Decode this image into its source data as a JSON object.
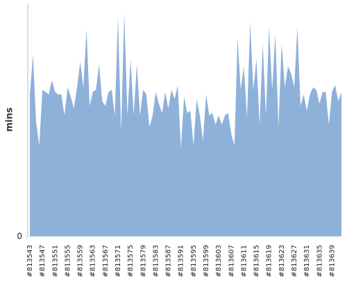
{
  "chart_data": {
    "type": "area",
    "y_label": "mins",
    "color": "#8eb1da",
    "categories": [
      "#813543",
      null,
      null,
      null,
      "#813547",
      null,
      null,
      null,
      "#813551",
      null,
      null,
      null,
      "#813555",
      null,
      null,
      null,
      "#813559",
      null,
      null,
      null,
      "#813563",
      null,
      null,
      null,
      "#813567",
      null,
      null,
      null,
      "#813571",
      null,
      null,
      null,
      "#813575",
      null,
      null,
      null,
      "#813579",
      null,
      null,
      null,
      "#813583",
      null,
      null,
      null,
      "#813587",
      null,
      null,
      null,
      "#813591",
      null,
      null,
      null,
      "#813595",
      null,
      null,
      null,
      "#813599",
      null,
      null,
      null,
      "#813603",
      null,
      null,
      null,
      "#813607",
      null,
      null,
      null,
      "#813611",
      null,
      null,
      null,
      "#813615",
      null,
      null,
      null,
      "#813619",
      null,
      null,
      null,
      "#813623",
      null,
      null,
      null,
      "#813627",
      null,
      null,
      null,
      "#813631",
      null,
      null,
      null,
      "#813635",
      null,
      null,
      null,
      "#813639",
      null,
      null,
      null
    ],
    "values": [
      61,
      78,
      49,
      39,
      63,
      62,
      61,
      67,
      62,
      61,
      61,
      52,
      64,
      60,
      55,
      64,
      75,
      64,
      89,
      56,
      62,
      63,
      74,
      58,
      56,
      62,
      63,
      52,
      94,
      45,
      96,
      52,
      76,
      52,
      74,
      52,
      63,
      61,
      47,
      52,
      62,
      57,
      53,
      62,
      55,
      63,
      59,
      65,
      38,
      60,
      53,
      54,
      39,
      59,
      52,
      41,
      61,
      52,
      53,
      48,
      52,
      48,
      52,
      53,
      44,
      39,
      85,
      63,
      73,
      51,
      92,
      63,
      76,
      48,
      83,
      52,
      90,
      63,
      87,
      47,
      83,
      64,
      73,
      70,
      64,
      90,
      56,
      61,
      54,
      61,
      64,
      63,
      57,
      62,
      62,
      48,
      62,
      65,
      58,
      62
    ],
    "ylim": [
      0,
      100
    ],
    "yticks": [
      0
    ]
  }
}
